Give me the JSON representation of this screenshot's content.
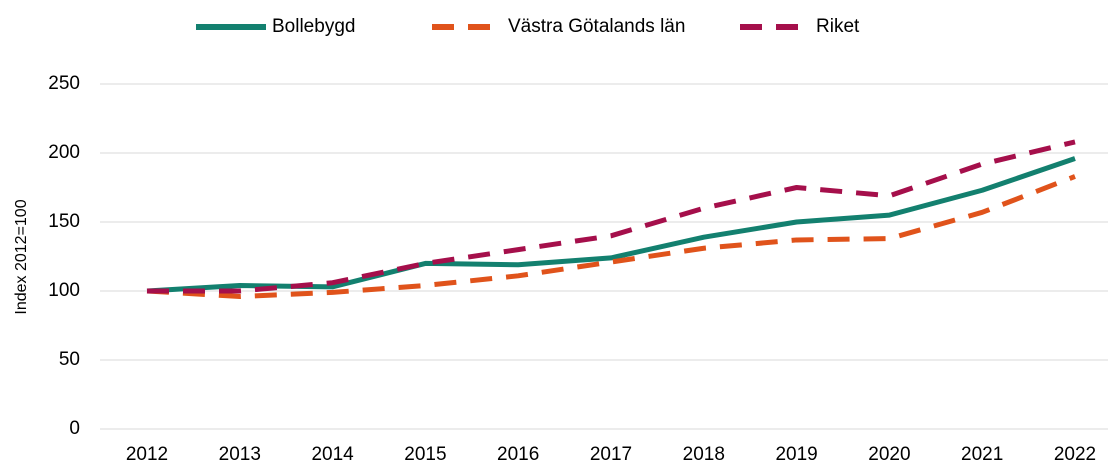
{
  "chart_data": {
    "type": "line",
    "y_label": "Index 2012=100",
    "categories": [
      "2012",
      "2013",
      "2014",
      "2015",
      "2016",
      "2017",
      "2018",
      "2019",
      "2020",
      "2021",
      "2022"
    ],
    "series": [
      {
        "name": "Bollebygd",
        "color": "#13806f",
        "dash": "solid",
        "values": [
          100,
          104,
          103,
          120,
          119,
          124,
          139,
          150,
          155,
          173,
          196
        ]
      },
      {
        "name": "Västra Götalands län",
        "color": "#e0531b",
        "dash": "dashed",
        "values": [
          100,
          96,
          99,
          104,
          111,
          121,
          131,
          137,
          138,
          157,
          183
        ]
      },
      {
        "name": "Riket",
        "color": "#a50f4b",
        "dash": "dashed",
        "values": [
          100,
          100,
          106,
          120,
          130,
          140,
          160,
          175,
          169,
          192,
          208
        ]
      }
    ],
    "ylim": [
      0,
      250
    ],
    "yticks": [
      0,
      50,
      100,
      150,
      200,
      250
    ],
    "grid": true,
    "legend": "top"
  }
}
